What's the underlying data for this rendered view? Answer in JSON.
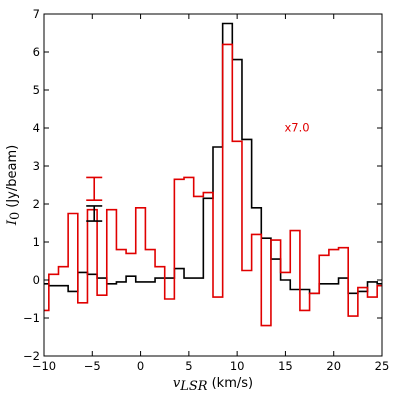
{
  "chart_data": {
    "type": "line",
    "xlabel_symbol": "v",
    "xlabel_subscript": "LSR",
    "xlabel_unit": "(km/s)",
    "ylabel_symbol": "I",
    "ylabel_subscript": "0",
    "ylabel_unit": "(Jy/beam)",
    "xlim": [
      -10,
      25
    ],
    "ylim": [
      -2,
      7
    ],
    "xticks": [
      -10,
      -5,
      0,
      5,
      10,
      15,
      20,
      25
    ],
    "yticks": [
      -2,
      -1,
      0,
      1,
      2,
      3,
      4,
      5,
      6,
      7
    ],
    "xtick_labels": [
      "−10",
      "−5",
      "0",
      "5",
      "10",
      "15",
      "20",
      "25"
    ],
    "ytick_labels": [
      "−2",
      "−1",
      "0",
      "1",
      "2",
      "3",
      "4",
      "5",
      "6",
      "7"
    ],
    "drawstyle": "steps-mid",
    "grid": false,
    "series": [
      {
        "color": "#000000",
        "x": [
          -10,
          -9,
          -8,
          -7,
          -6,
          -5,
          -4,
          -3,
          -2,
          -1,
          0,
          1,
          2,
          3,
          4,
          5,
          6,
          7,
          8,
          9,
          10,
          11,
          12,
          13,
          14,
          15,
          16,
          17,
          18,
          19,
          20,
          21,
          22,
          23,
          24,
          25
        ],
        "y": [
          -0.1,
          -0.15,
          -0.15,
          -0.3,
          0.2,
          0.15,
          0.05,
          -0.1,
          -0.05,
          0.1,
          -0.05,
          -0.05,
          0.05,
          0.05,
          0.3,
          0.05,
          0.05,
          2.15,
          3.5,
          6.75,
          5.8,
          3.7,
          1.9,
          1.1,
          0.55,
          0.0,
          -0.25,
          -0.25,
          -0.35,
          -0.1,
          -0.1,
          0.05,
          -0.35,
          -0.3,
          -0.05,
          -0.1
        ]
      },
      {
        "color": "#e00000",
        "x": [
          -10,
          -9,
          -8,
          -7,
          -6,
          -5,
          -4,
          -3,
          -2,
          -1,
          0,
          1,
          2,
          3,
          4,
          5,
          6,
          7,
          8,
          9,
          10,
          11,
          12,
          13,
          14,
          15,
          16,
          17,
          18,
          19,
          20,
          21,
          22,
          23,
          24,
          25
        ],
        "y": [
          -0.8,
          0.15,
          0.35,
          1.75,
          -0.6,
          1.85,
          -0.4,
          1.85,
          0.8,
          0.7,
          1.9,
          0.8,
          0.35,
          -0.5,
          2.65,
          2.7,
          2.2,
          2.3,
          -0.45,
          6.2,
          3.65,
          0.25,
          1.2,
          -1.2,
          1.05,
          0.2,
          1.3,
          -0.8,
          -0.35,
          0.65,
          0.8,
          0.85,
          -0.95,
          -0.2,
          -0.45,
          -0.15
        ]
      }
    ],
    "error_bars": [
      {
        "x": -4.8,
        "y": 1.75,
        "err": 0.2,
        "color": "#000000"
      },
      {
        "x": -4.8,
        "y": 2.4,
        "err": 0.3,
        "color": "#e00000"
      }
    ],
    "annotations": [
      {
        "text": "x7.0",
        "x": 16.2,
        "y": 4.0,
        "color": "#e00000"
      }
    ]
  }
}
